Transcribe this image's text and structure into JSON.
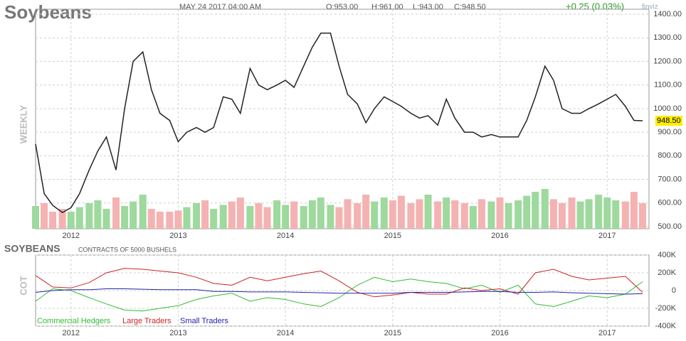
{
  "header": {
    "title": "Soybeans",
    "date": "MAY 24 2017 04:00 AM",
    "open": "O:953.00",
    "high": "H:961.00",
    "low": "L:943.00",
    "close": "C:948.50",
    "change": "+0.25 (0.03%)",
    "logo": "finviz"
  },
  "chart_data": [
    {
      "type": "line",
      "ylabel": "WEEKLY",
      "color": "#222222",
      "x": [
        2011.67,
        2011.75,
        2011.83,
        2011.92,
        2012.0,
        2012.08,
        2012.17,
        2012.25,
        2012.33,
        2012.42,
        2012.5,
        2012.58,
        2012.67,
        2012.75,
        2012.83,
        2012.92,
        2013.0,
        2013.08,
        2013.17,
        2013.25,
        2013.33,
        2013.42,
        2013.5,
        2013.58,
        2013.67,
        2013.75,
        2013.83,
        2013.92,
        2014.0,
        2014.08,
        2014.17,
        2014.25,
        2014.33,
        2014.42,
        2014.5,
        2014.58,
        2014.67,
        2014.75,
        2014.83,
        2014.92,
        2015.0,
        2015.08,
        2015.17,
        2015.25,
        2015.33,
        2015.42,
        2015.5,
        2015.58,
        2015.67,
        2015.75,
        2015.83,
        2015.92,
        2016.0,
        2016.08,
        2016.17,
        2016.25,
        2016.33,
        2016.42,
        2016.5,
        2016.58,
        2016.67,
        2016.75,
        2016.83,
        2016.92,
        2017.0,
        2017.08,
        2017.17,
        2017.25,
        2017.33
      ],
      "values": [
        850,
        640,
        590,
        560,
        580,
        640,
        740,
        820,
        880,
        740,
        1000,
        1200,
        1240,
        1080,
        980,
        950,
        860,
        900,
        920,
        900,
        920,
        1050,
        1040,
        980,
        1170,
        1100,
        1080,
        1100,
        1120,
        1090,
        1180,
        1260,
        1320,
        1320,
        1180,
        1060,
        1020,
        940,
        1000,
        1050,
        1030,
        1010,
        980,
        960,
        970,
        930,
        1040,
        960,
        900,
        900,
        880,
        890,
        880,
        880,
        880,
        950,
        1050,
        1180,
        1120,
        1000,
        980,
        980,
        1000,
        1020,
        1040,
        1060,
        1010,
        950,
        948.5
      ],
      "last_label": {
        "value": 948.5,
        "label": "948.50"
      },
      "volume": [
        40,
        45,
        30,
        35,
        30,
        38,
        45,
        50,
        35,
        55,
        40,
        48,
        60,
        35,
        30,
        30,
        32,
        38,
        45,
        50,
        35,
        42,
        48,
        55,
        40,
        45,
        38,
        50,
        42,
        48,
        40,
        50,
        55,
        42,
        38,
        52,
        45,
        60,
        48,
        55,
        50,
        58,
        45,
        52,
        60,
        48,
        55,
        50,
        45,
        40,
        52,
        48,
        55,
        45,
        50,
        58,
        65,
        70,
        52,
        45,
        55,
        48,
        52,
        60,
        55,
        50,
        48,
        65,
        45
      ],
      "volume_lim": [
        0,
        100
      ],
      "volume_colors": [
        "#9ed99e",
        "#f5b2b2"
      ],
      "xlim": [
        2011.67,
        2017.39
      ],
      "xticks": [
        2012,
        2013,
        2014,
        2015,
        2016,
        2017
      ],
      "ylim": [
        491,
        1421
      ],
      "yticks": [
        {
          "value": 500,
          "label": "500.00"
        },
        {
          "value": 600,
          "label": "600.00"
        },
        {
          "value": 700,
          "label": "700.00"
        },
        {
          "value": 800,
          "label": "800.00"
        },
        {
          "value": 900,
          "label": "900.00"
        },
        {
          "value": 1000,
          "label": "1000.00"
        },
        {
          "value": 1100,
          "label": "1100.00"
        },
        {
          "value": 1200,
          "label": "1200.00"
        },
        {
          "value": 1300,
          "label": "1300.00"
        },
        {
          "value": 1400,
          "label": "1400.00"
        }
      ],
      "grid": true
    },
    {
      "type": "line",
      "title": "SOYBEANS",
      "subtitle": "CONTRACTS OF 5000 BUSHELS",
      "ylabel": "COT",
      "x": [
        2011.67,
        2011.83,
        2012.0,
        2012.17,
        2012.33,
        2012.5,
        2012.67,
        2012.83,
        2013.0,
        2013.17,
        2013.33,
        2013.5,
        2013.67,
        2013.83,
        2014.0,
        2014.17,
        2014.33,
        2014.5,
        2014.67,
        2014.83,
        2015.0,
        2015.17,
        2015.33,
        2015.5,
        2015.67,
        2015.83,
        2016.0,
        2016.17,
        2016.33,
        2016.5,
        2016.67,
        2016.83,
        2017.0,
        2017.17,
        2017.33
      ],
      "series": [
        {
          "name": "Commercial Hedgers",
          "color": "#33bb33",
          "values": [
            -120000,
            20000,
            0,
            -80000,
            -150000,
            -220000,
            -230000,
            -200000,
            -170000,
            -100000,
            -60000,
            -30000,
            -120000,
            -80000,
            -100000,
            -150000,
            -180000,
            -80000,
            60000,
            150000,
            100000,
            130000,
            100000,
            80000,
            20000,
            60000,
            -20000,
            60000,
            -150000,
            -180000,
            -120000,
            -60000,
            -80000,
            -40000,
            100000
          ]
        },
        {
          "name": "Large Traders",
          "color": "#cc2222",
          "values": [
            170000,
            40000,
            30000,
            90000,
            200000,
            250000,
            240000,
            220000,
            200000,
            150000,
            80000,
            60000,
            150000,
            110000,
            150000,
            190000,
            220000,
            110000,
            -20000,
            -70000,
            -50000,
            -20000,
            -40000,
            -40000,
            30000,
            0,
            20000,
            -40000,
            200000,
            240000,
            160000,
            120000,
            140000,
            160000,
            -20000
          ]
        },
        {
          "name": "Small Traders",
          "color": "#2222aa",
          "values": [
            -20000,
            0,
            10000,
            10000,
            20000,
            20000,
            15000,
            10000,
            10000,
            10000,
            -10000,
            -10000,
            -15000,
            -15000,
            -15000,
            -20000,
            -25000,
            -30000,
            -30000,
            -30000,
            -30000,
            -20000,
            -20000,
            -20000,
            -15000,
            -10000,
            -10000,
            -20000,
            -20000,
            -15000,
            -25000,
            -30000,
            -35000,
            -40000,
            -35000
          ]
        }
      ],
      "xlim": [
        2011.67,
        2017.39
      ],
      "xticks": [
        2012,
        2013,
        2014,
        2015,
        2016,
        2017
      ],
      "ylim": [
        -400000,
        400000
      ],
      "yticks": [
        {
          "value": -400000,
          "label": "-400K"
        },
        {
          "value": -200000,
          "label": "-200K"
        },
        0,
        {
          "value": 200000,
          "label": "200K"
        },
        {
          "value": 400000,
          "label": "400K"
        }
      ],
      "grid": true
    }
  ]
}
